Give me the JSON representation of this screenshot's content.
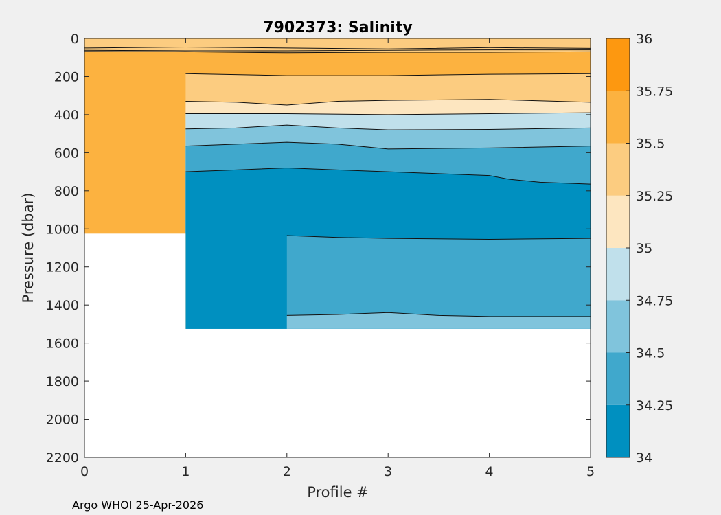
{
  "chart_data": {
    "type": "contour",
    "title": "7902373:  Salinity",
    "xlabel": "Profile #",
    "ylabel": "Pressure (dbar)",
    "xlim": [
      0,
      5
    ],
    "ylim": [
      2200,
      0
    ],
    "y_reversed": true,
    "xticks": [
      "0",
      "1",
      "2",
      "3",
      "4",
      "5"
    ],
    "yticks": [
      "0",
      "200",
      "400",
      "600",
      "800",
      "1000",
      "1200",
      "1400",
      "1600",
      "1800",
      "2000",
      "2200"
    ],
    "colorbar": {
      "range": [
        34,
        36
      ],
      "tick_labels": [
        "34",
        "34.25",
        "34.5",
        "34.75",
        "35",
        "35.25",
        "35.5",
        "35.75",
        "36"
      ],
      "band_colors": [
        "#0090c0",
        "#40a8cc",
        "#80c4dc",
        "#c0e0eb",
        "#fde6c0",
        "#fccc80",
        "#fcb240",
        "#fd9810"
      ]
    },
    "profiles": [
      {
        "profile": 0,
        "max_pressure": 85
      },
      {
        "profile": 1,
        "max_pressure": 1025
      },
      {
        "profile": 2,
        "max_pressure": 1525
      },
      {
        "profile": 3,
        "max_pressure": 1525
      },
      {
        "profile": 4,
        "max_pressure": 1525
      },
      {
        "profile": 5,
        "max_pressure": 1525
      }
    ],
    "contours": [
      {
        "level": 35.75,
        "x": [
          0,
          1,
          2,
          3,
          4,
          5
        ],
        "pressure": [
          50,
          45,
          50,
          55,
          48,
          52
        ],
        "color": "#fcb240",
        "fill_to": "upper"
      },
      {
        "level": 35.5,
        "x": [
          0,
          1,
          2,
          3,
          4,
          5
        ],
        "pressure": [
          62,
          65,
          65,
          62,
          60,
          60
        ],
        "color": "#fccc80",
        "fill_to": "upper"
      },
      {
        "level": 35.25,
        "x": [
          0,
          1,
          2,
          3,
          4,
          5
        ],
        "pressure": [
          68,
          70,
          75,
          72,
          72,
          70
        ],
        "color": "#fcb240",
        "fill_to": "lower"
      },
      {
        "level": 35.5,
        "x": [
          1,
          2,
          3,
          4,
          5
        ],
        "pressure": [
          185,
          195,
          195,
          188,
          185
        ],
        "color": "#fccc80",
        "fill_to": "lower"
      },
      {
        "level": 35.25,
        "x": [
          1,
          1.5,
          2,
          2.5,
          3,
          4,
          5
        ],
        "pressure": [
          330,
          335,
          350,
          330,
          325,
          320,
          335
        ],
        "color": "#fde6c0",
        "fill_to": "lower"
      },
      {
        "level": 35.0,
        "x": [
          1,
          2,
          3,
          4,
          5
        ],
        "pressure": [
          395,
          395,
          400,
          395,
          390
        ],
        "color": "#c0e0eb",
        "fill_to": "lower"
      },
      {
        "level": 34.75,
        "x": [
          1,
          1.5,
          2,
          2.5,
          3,
          4,
          5
        ],
        "pressure": [
          475,
          470,
          455,
          470,
          480,
          478,
          470
        ],
        "color": "#80c4dc",
        "fill_to": "lower"
      },
      {
        "level": 34.5,
        "x": [
          1,
          1.5,
          2,
          2.5,
          3,
          4,
          5
        ],
        "pressure": [
          565,
          555,
          545,
          555,
          580,
          575,
          565
        ],
        "color": "#40a8cc",
        "fill_to": "lower"
      },
      {
        "level": 34.25,
        "x": [
          1,
          1.5,
          2,
          2.5,
          3,
          3.5,
          4,
          4.2,
          4.5,
          5
        ],
        "pressure": [
          700,
          690,
          680,
          690,
          700,
          710,
          720,
          740,
          755,
          765
        ],
        "color": "#0090c0",
        "fill_to": "lower"
      },
      {
        "level": 34.25,
        "x": [
          2,
          2.5,
          3,
          4,
          5
        ],
        "pressure": [
          1035,
          1045,
          1050,
          1055,
          1050
        ],
        "color": "#40a8cc",
        "fill_to": "lower"
      },
      {
        "level": 34.5,
        "x": [
          2,
          2.5,
          3,
          3.5,
          4,
          5
        ],
        "pressure": [
          1455,
          1450,
          1440,
          1455,
          1460,
          1460
        ],
        "color": "#80c4dc",
        "fill_to": "lower"
      }
    ],
    "legend": "colorbar-right"
  },
  "footer": {
    "credit": "Argo WHOI 25-Apr-2026"
  }
}
